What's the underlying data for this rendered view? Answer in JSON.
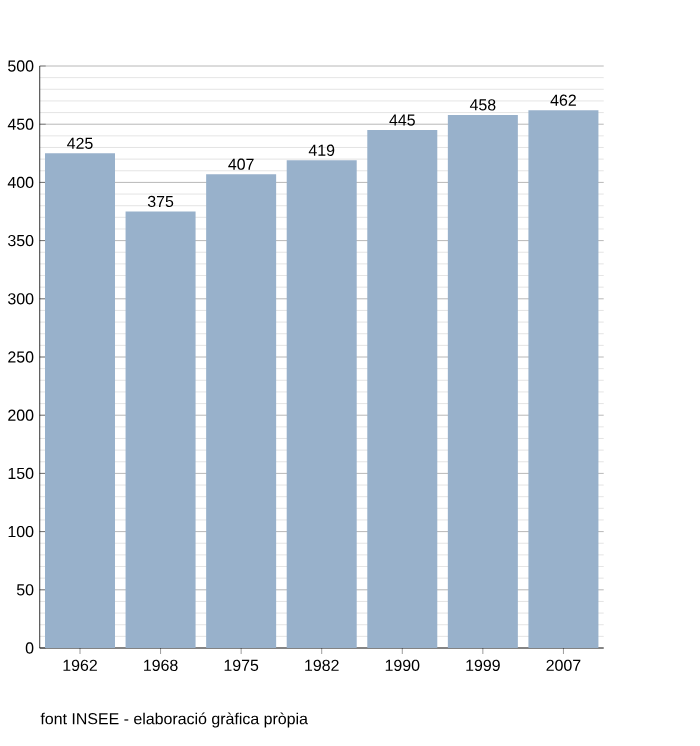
{
  "chart_data": {
    "type": "bar",
    "categories": [
      "1962",
      "1968",
      "1975",
      "1982",
      "1990",
      "1999",
      "2007"
    ],
    "values": [
      425,
      375,
      407,
      419,
      445,
      458,
      462
    ],
    "color": "#98b1cb",
    "ylim": [
      0,
      500
    ],
    "yticks": [
      0,
      50,
      100,
      150,
      200,
      250,
      300,
      350,
      400,
      450,
      500
    ],
    "grid": "y",
    "data_labels": true,
    "annotations": [
      "font INSEE - elaboració gràfica pròpia"
    ]
  }
}
